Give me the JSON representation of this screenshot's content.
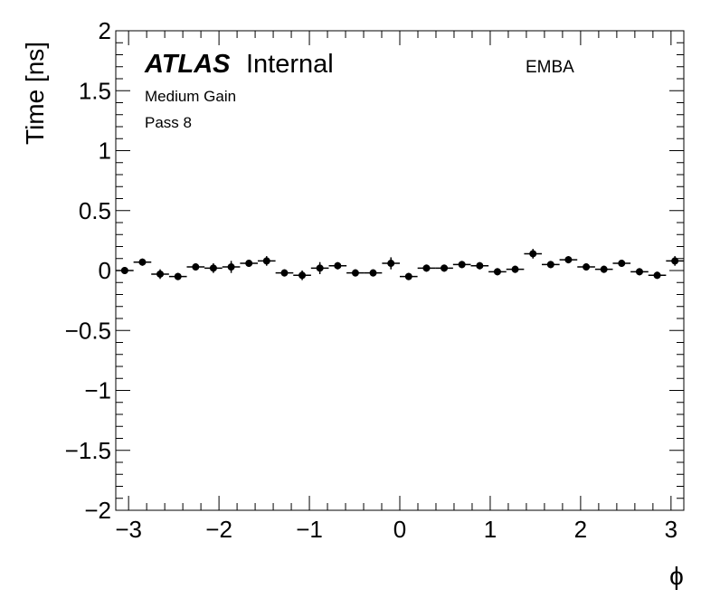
{
  "chart_data": {
    "type": "scatter",
    "title": "",
    "xlabel": "ϕ",
    "ylabel": "Time [ns]",
    "xlim": [
      -3.14159,
      3.14159
    ],
    "ylim": [
      -2,
      2
    ],
    "x_ticks": [
      -3,
      -2,
      -1,
      0,
      1,
      2,
      3
    ],
    "x_tick_labels": [
      "−3",
      "−2",
      "−1",
      "0",
      "1",
      "2",
      "3"
    ],
    "y_ticks": [
      -2,
      -1.5,
      -1,
      -0.5,
      0,
      0.5,
      1,
      1.5,
      2
    ],
    "y_tick_labels": [
      "−2",
      "−1.5",
      "−1",
      "−0.5",
      "0",
      "0.5",
      "1",
      "1.5",
      "2"
    ],
    "grid": false,
    "series": [
      {
        "marker": "filled-circle",
        "color": "#000000",
        "x_bin_halfwidth": 0.0982,
        "x": [
          -3.043,
          -2.847,
          -2.651,
          -2.454,
          -2.258,
          -2.062,
          -1.865,
          -1.669,
          -1.473,
          -1.276,
          -1.08,
          -0.884,
          -0.687,
          -0.491,
          -0.295,
          -0.098,
          0.098,
          0.295,
          0.491,
          0.687,
          0.884,
          1.08,
          1.276,
          1.473,
          1.669,
          1.865,
          2.062,
          2.258,
          2.454,
          2.651,
          2.847,
          3.043
        ],
        "y": [
          0.0,
          0.07,
          -0.03,
          -0.05,
          0.03,
          0.02,
          0.03,
          0.06,
          0.08,
          -0.02,
          -0.04,
          0.02,
          0.04,
          -0.02,
          -0.02,
          0.06,
          -0.05,
          0.02,
          0.02,
          0.05,
          0.04,
          -0.01,
          0.01,
          0.14,
          0.05,
          0.09,
          0.03,
          0.01,
          0.06,
          -0.01,
          -0.04,
          0.08
        ],
        "y_err": [
          0.03,
          0.03,
          0.04,
          0.03,
          0.03,
          0.04,
          0.05,
          0.03,
          0.04,
          0.03,
          0.04,
          0.05,
          0.03,
          0.03,
          0.03,
          0.05,
          0.03,
          0.03,
          0.03,
          0.03,
          0.03,
          0.03,
          0.03,
          0.04,
          0.03,
          0.03,
          0.03,
          0.03,
          0.03,
          0.03,
          0.03,
          0.04
        ]
      }
    ],
    "annotations": {
      "atlas": "ATLAS",
      "status": "Internal",
      "line1": "Medium Gain",
      "line2": "Pass 8",
      "region": "EMBA"
    }
  }
}
